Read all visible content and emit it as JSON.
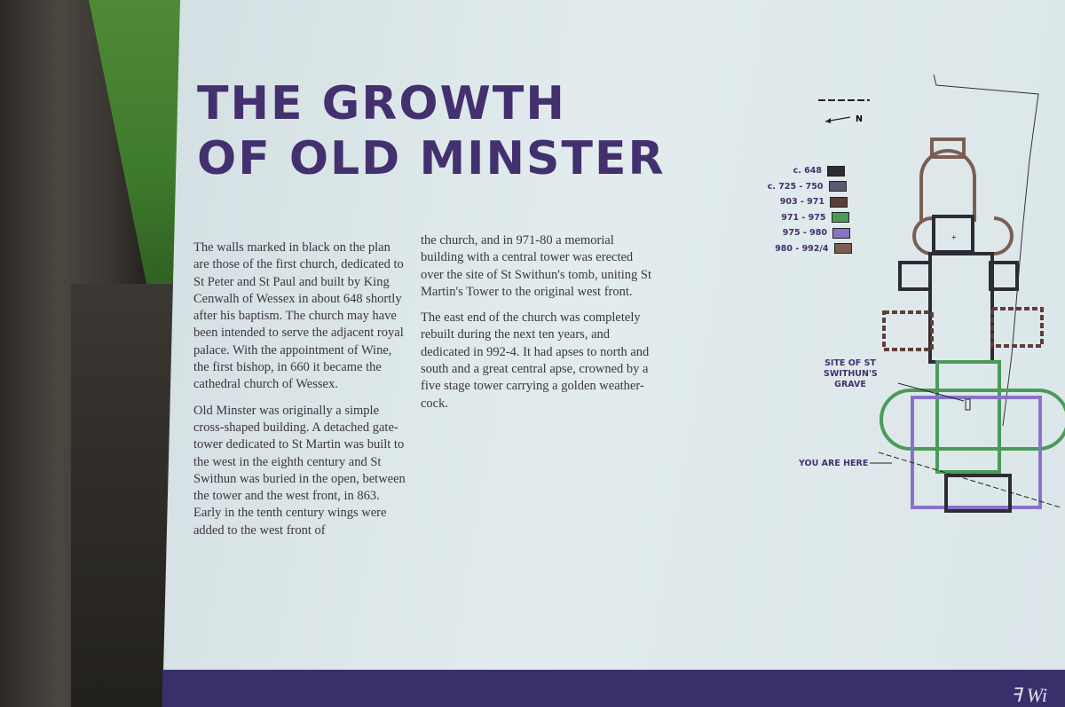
{
  "sign": {
    "title_line1": "THE GROWTH",
    "title_line2": "OF OLD MINSTER",
    "column1": [
      "The walls marked in black on the plan are those of the first church, dedicated to St Peter and St Paul and built by King Cenwalh of Wessex in about 648 shortly after his baptism. The church may have been intended to serve the adjacent royal palace. With the appointment of Wine, the first bishop, in 660 it became the cathedral church of Wessex.",
      "Old Minster was originally a simple cross-shaped building. A detached gate-tower dedicated to St Martin was built to the west in the eighth century and St Swithun was buried in the open, between the tower and the west front, in 863. Early in the tenth century wings were added to the west front of"
    ],
    "column2": [
      "the church, and in 971-80 a memorial building with a central tower was erected over the site of St Swithun's tomb, uniting St Martin's Tower to the original west front.",
      "The east end of the church was completely rebuilt during the next ten years, and dedicated in 992-4. It had apses to north and south and a great central apse, crowned by a five stage tower carrying a golden weather-cock."
    ],
    "north_label": "N",
    "legend": [
      {
        "label": "c. 648",
        "color": "#2c2c34"
      },
      {
        "label": "c. 725 - 750",
        "color": "#5a5a72"
      },
      {
        "label": "903 - 971",
        "color": "#5e3e3a"
      },
      {
        "label": "971 - 975",
        "color": "#4c9a5a"
      },
      {
        "label": "975 - 980",
        "color": "#8a72c8"
      },
      {
        "label": "980 - 992/4",
        "color": "#7a5e52"
      }
    ],
    "grave_label": "SITE OF ST SWITHUN'S GRAVE",
    "here_label": "YOU ARE HERE",
    "accent": "#43306e"
  }
}
